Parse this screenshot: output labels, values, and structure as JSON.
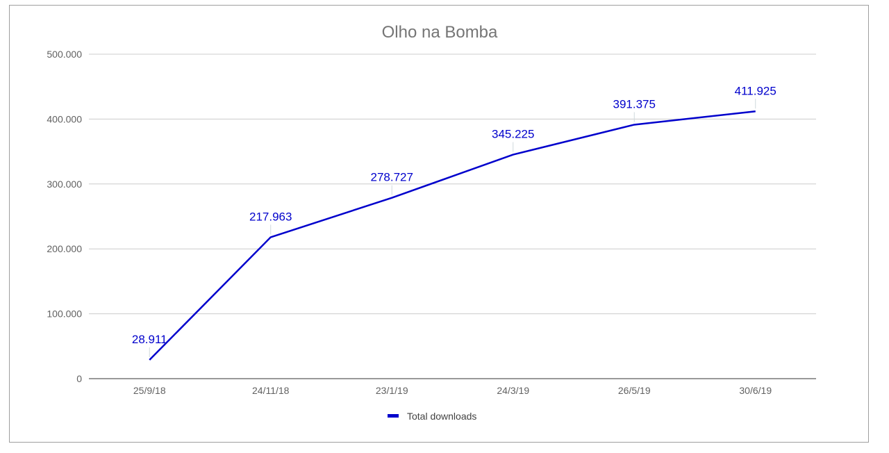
{
  "chart_data": {
    "type": "line",
    "title": "Olho na Bomba",
    "xlabel": "",
    "ylabel": "",
    "categories": [
      "25/9/18",
      "24/11/18",
      "23/1/19",
      "24/3/19",
      "26/5/19",
      "30/6/19"
    ],
    "series": [
      {
        "name": "Total downloads",
        "color": "#0000cc",
        "values": [
          28911,
          217963,
          278727,
          345225,
          391375,
          411925
        ],
        "labels": [
          "28.911",
          "217.963",
          "278.727",
          "345.225",
          "391.375",
          "411.925"
        ]
      }
    ],
    "ylim": [
      0,
      500000
    ],
    "yticks": [
      0,
      100000,
      200000,
      300000,
      400000,
      500000
    ],
    "ytick_labels": [
      "0",
      "100.000",
      "200.000",
      "300.000",
      "400.000",
      "500.000"
    ],
    "grid": true,
    "legend": "bottom"
  }
}
